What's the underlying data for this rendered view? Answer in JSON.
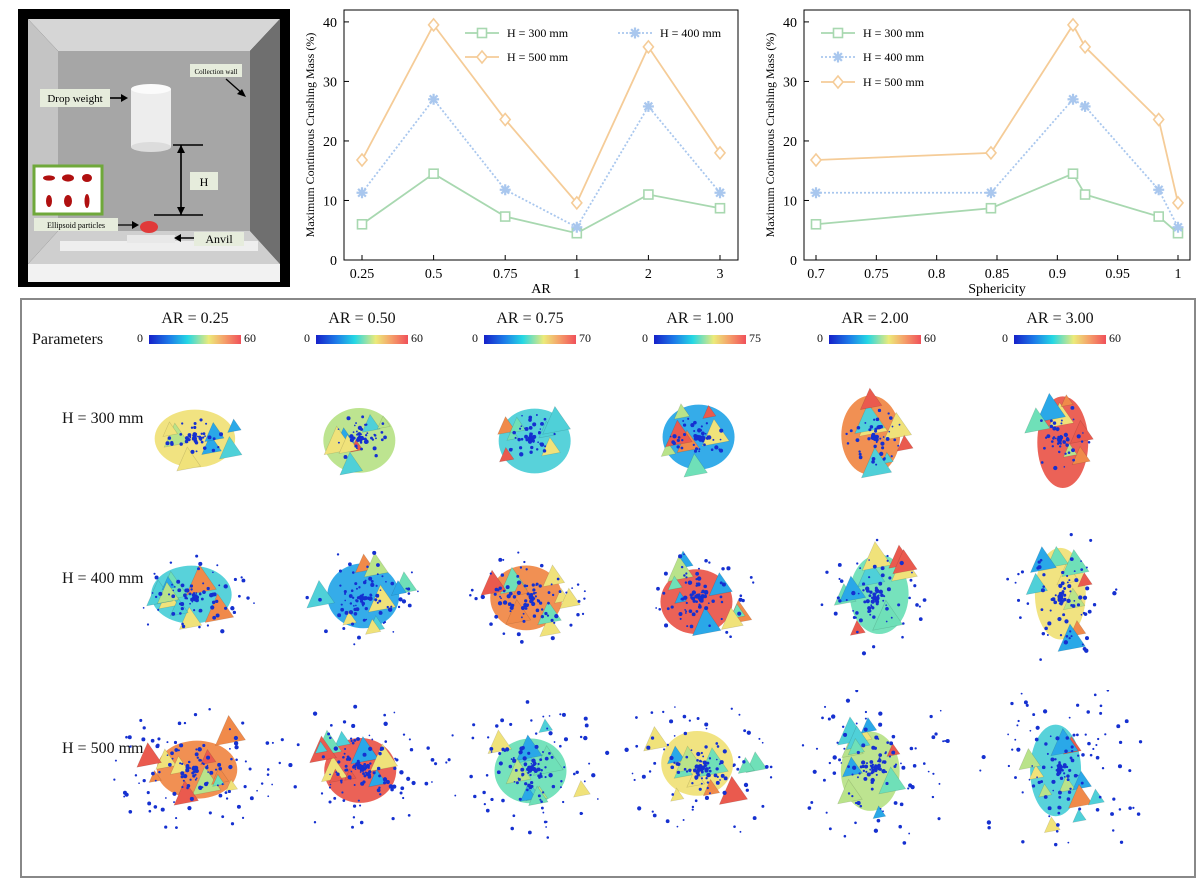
{
  "schematic": {
    "labels": {
      "drop_weight": "Drop weight",
      "collection_wall": "Collection wall",
      "h": "H",
      "ellipsoid_particles": "Ellipsoid particles",
      "anvil": "Anvil"
    }
  },
  "chart_data": [
    {
      "type": "line",
      "xlabel": "AR",
      "ylabel": "Maximum Continuous Crushing Mass (%)",
      "categories": [
        "0.25",
        "0.5",
        "0.75",
        "1",
        "2",
        "3"
      ],
      "ylim": [
        0,
        42
      ],
      "yticks": [
        0,
        10,
        20,
        30,
        40
      ],
      "legend": "top",
      "series": [
        {
          "name": "H = 300 mm",
          "color": "#a8d8b0",
          "marker": "square",
          "dash": "solid",
          "values": [
            6.0,
            14.5,
            7.3,
            4.5,
            11.0,
            8.7
          ]
        },
        {
          "name": "H = 400 mm",
          "color": "#a9c7ee",
          "marker": "asterisk",
          "dash": "dotted",
          "values": [
            11.3,
            27.0,
            11.8,
            5.5,
            25.8,
            11.3
          ]
        },
        {
          "name": "H = 500 mm",
          "color": "#f5cc98",
          "marker": "diamond",
          "dash": "solid",
          "values": [
            16.8,
            39.5,
            23.6,
            9.6,
            35.8,
            18.0
          ]
        }
      ]
    },
    {
      "type": "line",
      "xlabel": "Sphericity",
      "ylabel": "Maximum Continuous Crushing Mass (%)",
      "xticks": [
        "0.7",
        "0.75",
        "0.8",
        "0.85",
        "0.9",
        "0.95",
        "1"
      ],
      "xlim": [
        0.7,
        1.0
      ],
      "ylim": [
        0,
        42
      ],
      "yticks": [
        0,
        10,
        20,
        30,
        40
      ],
      "legend": "top-left",
      "series": [
        {
          "name": "H = 300 mm",
          "color": "#a8d8b0",
          "marker": "square",
          "dash": "solid",
          "x": [
            0.7,
            0.845,
            0.913,
            0.923,
            0.984,
            1.0
          ],
          "values": [
            6.0,
            8.7,
            14.5,
            11.0,
            7.3,
            4.5
          ]
        },
        {
          "name": "H = 400 mm",
          "color": "#a9c7ee",
          "marker": "asterisk",
          "dash": "dotted",
          "x": [
            0.7,
            0.845,
            0.913,
            0.923,
            0.984,
            1.0
          ],
          "values": [
            11.3,
            11.3,
            27.0,
            25.8,
            11.8,
            5.5
          ]
        },
        {
          "name": "H = 500 mm",
          "color": "#f5cc98",
          "marker": "diamond",
          "dash": "solid",
          "x": [
            0.7,
            0.845,
            0.913,
            0.923,
            0.984,
            1.0
          ],
          "values": [
            16.8,
            18.0,
            39.5,
            35.8,
            23.6,
            9.6
          ]
        }
      ]
    }
  ],
  "fragment_grid": {
    "parameters_label": "Parameters",
    "columns": [
      {
        "title": "AR = 0.25",
        "cbar_min": "0",
        "cbar_max": "60"
      },
      {
        "title": "AR = 0.50",
        "cbar_min": "0",
        "cbar_max": "60"
      },
      {
        "title": "AR = 0.75",
        "cbar_min": "0",
        "cbar_max": "70"
      },
      {
        "title": "AR = 1.00",
        "cbar_min": "0",
        "cbar_max": "75"
      },
      {
        "title": "AR = 2.00",
        "cbar_min": "0",
        "cbar_max": "60"
      },
      {
        "title": "AR = 3.00",
        "cbar_min": "0",
        "cbar_max": "60"
      }
    ],
    "rows": [
      {
        "label": "H = 300 mm"
      },
      {
        "label": "H = 400 mm"
      },
      {
        "label": "H = 500 mm"
      }
    ],
    "fragment_colors": [
      "#f0e27a",
      "#b9e38a",
      "#4fd0d8",
      "#2aa8e8",
      "#f08a4a",
      "#ea5a4e",
      "#6fe0b8"
    ],
    "particle_color": "#1530d0"
  }
}
